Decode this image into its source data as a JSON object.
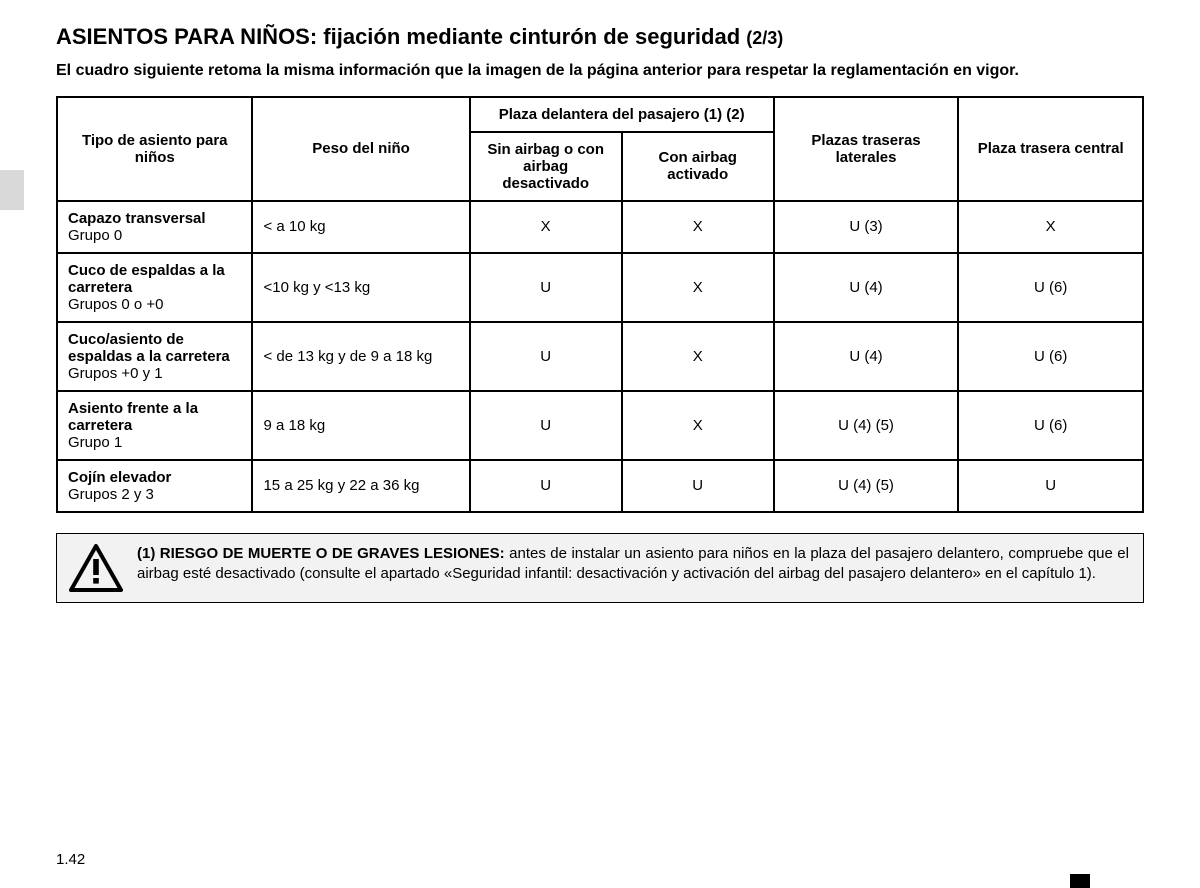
{
  "title_main": "ASIENTOS PARA NIÑOS: fijación mediante cinturón de seguridad",
  "title_part": "(2/3)",
  "intro": "El cuadro siguiente retoma la misma información que la imagen de la página anterior para respetar la reglamentación en vigor.",
  "headers": {
    "col1": "Tipo de asiento para niños",
    "col2": "Peso del niño",
    "front_group": "Plaza delantera del pasajero (1) (2)",
    "col3": "Sin airbag o con airbag desactivado",
    "col4": "Con airbag activado",
    "col5": "Plazas traseras laterales",
    "col6": "Plaza trasera central"
  },
  "rows": [
    {
      "type_bold": "Capazo transversal",
      "type_sub": "Grupo 0",
      "weight": "< a 10 kg",
      "c3": "X",
      "c4": "X",
      "c5": "U (3)",
      "c6": "X"
    },
    {
      "type_bold": "Cuco de espaldas a la carretera",
      "type_sub": "Grupos 0 o +0",
      "weight": "<10 kg y <13 kg",
      "c3": "U",
      "c4": "X",
      "c5": "U (4)",
      "c6": "U (6)"
    },
    {
      "type_bold": "Cuco/asiento de espaldas a la carretera",
      "type_sub": "Grupos +0 y 1",
      "weight": "< de 13 kg y de 9 a 18 kg",
      "c3": "U",
      "c4": "X",
      "c5": "U (4)",
      "c6": "U (6)"
    },
    {
      "type_bold": "Asiento frente a la carretera",
      "type_sub": "Grupo 1",
      "weight": "9 a 18 kg",
      "c3": "U",
      "c4": "X",
      "c5": "U (4) (5)",
      "c6": "U (6)"
    },
    {
      "type_bold": "Cojín elevador",
      "type_sub": "Grupos 2 y 3",
      "weight": "15 a 25 kg y 22 a 36 kg",
      "c3": "U",
      "c4": "U",
      "c5": "U (4) (5)",
      "c6": "U"
    }
  ],
  "warning_bold": "(1) RIESGO DE MUERTE O DE GRAVES LESIONES:",
  "warning_text": " antes de instalar un asiento para niños en la plaza del pasajero delantero, compruebe que el airbag esté desactivado (consulte el apartado «Seguridad infantil: desactivación y activación del airbag del pasajero delantero» en el capítulo 1).",
  "page_number": "1.42",
  "colors": {
    "background": "#ffffff",
    "text": "#000000",
    "side_tab": "#d9d9d9",
    "warning_bg": "#f2f2f2",
    "border": "#000000"
  }
}
